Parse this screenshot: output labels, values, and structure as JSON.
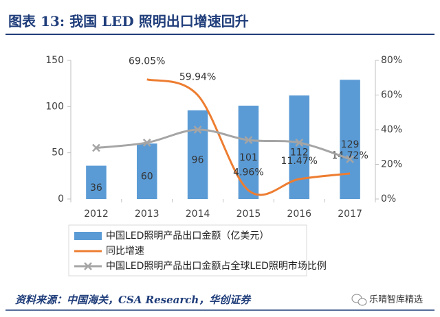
{
  "chart_data": {
    "type": "bar_line",
    "title": "图表 13: 我国 LED 照明出口增速回升",
    "source": "资料来源：中国海关，CSA Research，华创证券",
    "watermark": "乐晴智库精选",
    "categories": [
      "2012",
      "2013",
      "2014",
      "2015",
      "2016",
      "2017"
    ],
    "series": [
      {
        "name": "中国LED照明产品出口金额（亿美元）",
        "color": "#5b9bd5",
        "type": "bar",
        "values": [
          36,
          60,
          96,
          101,
          112,
          129
        ]
      },
      {
        "name": "同比增速",
        "color": "#ed7d31",
        "type": "line",
        "axis": "y2",
        "values": [
          null,
          69.05,
          59.94,
          4.96,
          11.47,
          14.72
        ],
        "value_labels": [
          null,
          "69.05%",
          "59.94%",
          "4.96%",
          "11.47%",
          "14.72%"
        ]
      },
      {
        "name": "中国LED照明产品出口金额占全球LED照明市场比例",
        "color": "#a5a5a5",
        "type": "line",
        "axis": "y2",
        "marker": "x",
        "values": [
          29.5,
          32.5,
          40,
          34,
          32.5,
          23
        ]
      }
    ],
    "ylim": [
      0,
      150
    ],
    "yticks": [
      0,
      50,
      100,
      150
    ],
    "y2lim": [
      0,
      80
    ],
    "y2ticks": [
      {
        "value": 0,
        "label": "0%"
      },
      {
        "value": 20,
        "label": "20%"
      },
      {
        "value": 40,
        "label": "40%"
      },
      {
        "value": 60,
        "label": "60%"
      },
      {
        "value": 80,
        "label": "80%"
      }
    ],
    "legend": "bottom"
  }
}
